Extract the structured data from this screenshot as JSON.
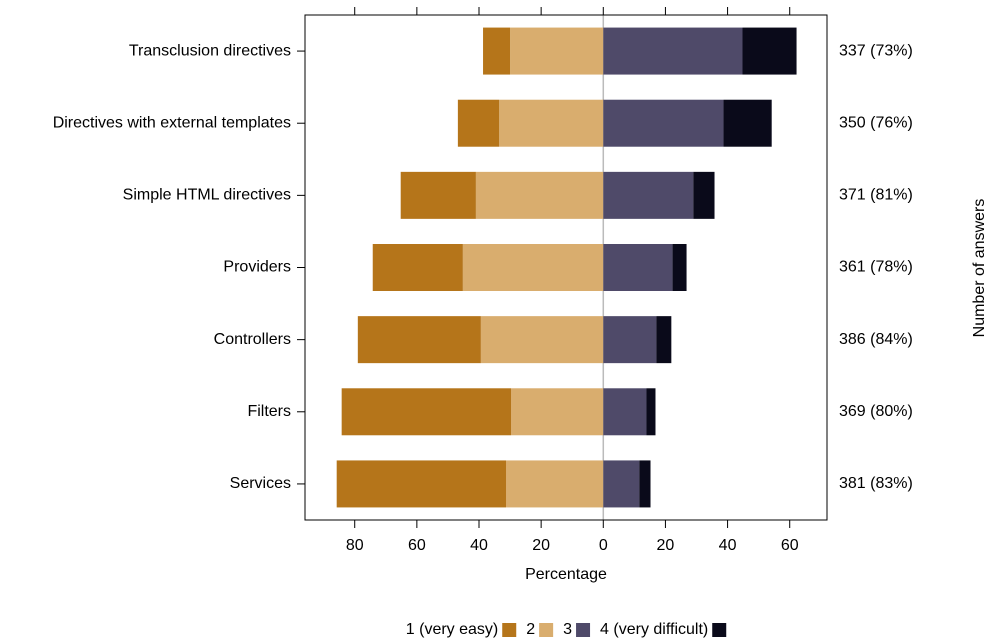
{
  "chart_data": {
    "type": "diverging_stacked_bar",
    "xlabel": "Percentage",
    "y2label": "Number of answers",
    "categories": [
      "Transclusion directives",
      "Directives with external templates",
      "Simple HTML directives",
      "Providers",
      "Controllers",
      "Filters",
      "Services"
    ],
    "answers": [
      "337 (73%)",
      "350 (76%)",
      "371 (81%)",
      "361 (78%)",
      "386 (84%)",
      "369 (80%)",
      "381 (83%)"
    ],
    "series": [
      {
        "name": "1 (very easy)",
        "color": "#b5751a",
        "values": [
          -8.7,
          -13.3,
          -24.2,
          -29,
          -39.6,
          -54.5,
          -54.5
        ]
      },
      {
        "name": "2",
        "color": "#d9ad6e",
        "values": [
          -30,
          -33.5,
          -41,
          -45.2,
          -39.4,
          -29.7,
          -31.3
        ]
      },
      {
        "name": "3",
        "color": "#4f4a69",
        "values": [
          44.8,
          38.7,
          29,
          22.3,
          17.1,
          13.9,
          11.6
        ]
      },
      {
        "name": "4 (very difficult)",
        "color": "#0a0a1a",
        "values": [
          17.4,
          15.5,
          6.8,
          4.5,
          4.8,
          2.9,
          3.6
        ]
      }
    ],
    "xlim": [
      -96,
      72
    ],
    "xticks": [
      {
        "value": -80,
        "label": "80"
      },
      {
        "value": -60,
        "label": "60"
      },
      {
        "value": -40,
        "label": "40"
      },
      {
        "value": -20,
        "label": "20"
      },
      0,
      20,
      40,
      60
    ]
  }
}
